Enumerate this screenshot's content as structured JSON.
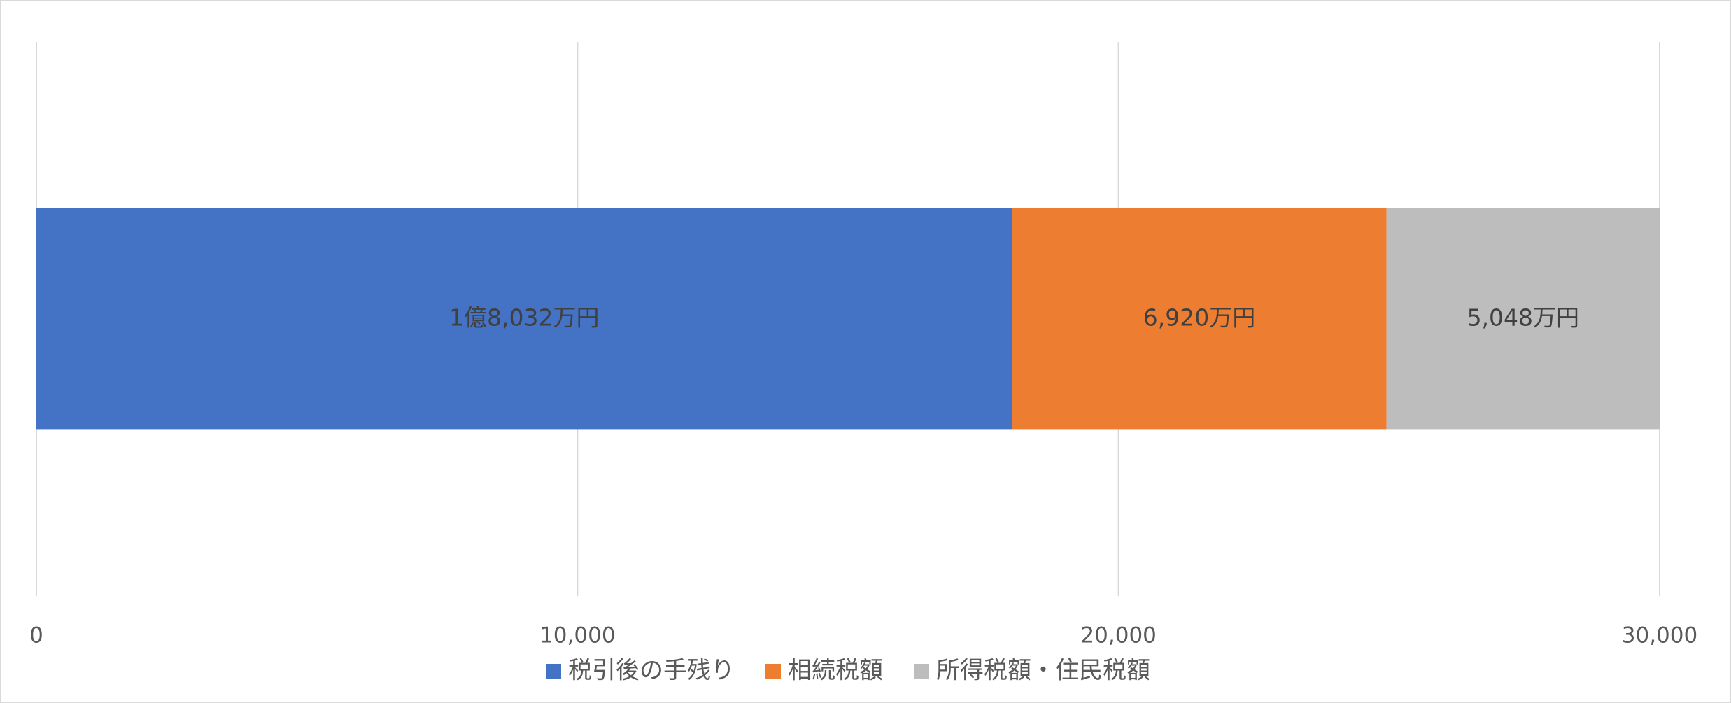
{
  "chart_data": {
    "type": "stacked-bar-horizontal",
    "categories": [
      null
    ],
    "series": [
      {
        "name": "税引後の手残り",
        "color": "#4472c4",
        "values": [
          18032
        ],
        "value_labels": [
          "1億8,032万円"
        ]
      },
      {
        "name": "相続税額",
        "color": "#ed7d31",
        "values": [
          6920
        ],
        "value_labels": [
          "6,920万円"
        ]
      },
      {
        "name": "所得税額・住民税額",
        "color": "#bdbdbd",
        "values": [
          5048
        ],
        "value_labels": [
          "5,048万円"
        ]
      }
    ],
    "xlim": [
      0,
      30000
    ],
    "xticks": [
      0,
      {
        "value": 10000,
        "label": "10,000"
      },
      {
        "value": 20000,
        "label": "20,000"
      },
      {
        "value": 30000,
        "label": "30,000"
      }
    ],
    "grid": true,
    "legend": "bottom"
  }
}
